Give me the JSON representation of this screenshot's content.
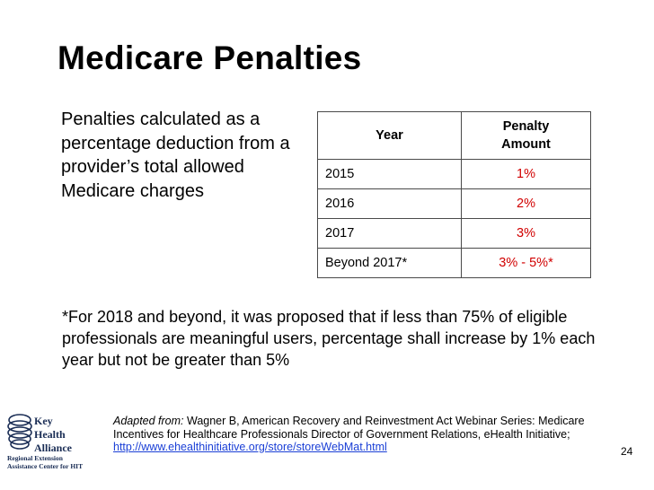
{
  "slide": {
    "title": "Medicare Penalties",
    "description": "Penalties calculated as a percentage deduction from a provider’s total allowed Medicare charges",
    "footnote": "*For 2018 and beyond, it was proposed that if less than 75% of eligible professionals are meaningful users, percentage shall increase by 1% each year but not be greater than 5%",
    "page_number": "24"
  },
  "table": {
    "headers": [
      "Year",
      "Penalty Amount"
    ],
    "rows": [
      {
        "year": "2015",
        "amount": "1%"
      },
      {
        "year": "2016",
        "amount": "2%"
      },
      {
        "year": "2017",
        "amount": "3%"
      },
      {
        "year": "Beyond 2017*",
        "amount": "3% - 5%*"
      }
    ]
  },
  "citation": {
    "lead": "Adapted from:",
    "text": " Wagner B, American Recovery and Reinvestment Act Webinar Series: Medicare Incentives for Healthcare Professionals Director of Government Relations, eHealth Initiative; ",
    "url": "http://www.ehealthinitiative.org/store/storeWebMat.html"
  },
  "logo": {
    "brand_lines": [
      "Key",
      "Health",
      "Alliance"
    ],
    "center_lines": [
      "Regional Extension",
      "Assistance Center for HIT"
    ]
  },
  "colors": {
    "amount_text": "#d10000",
    "link": "#1a3fd6",
    "logo": "#1a2d55"
  }
}
